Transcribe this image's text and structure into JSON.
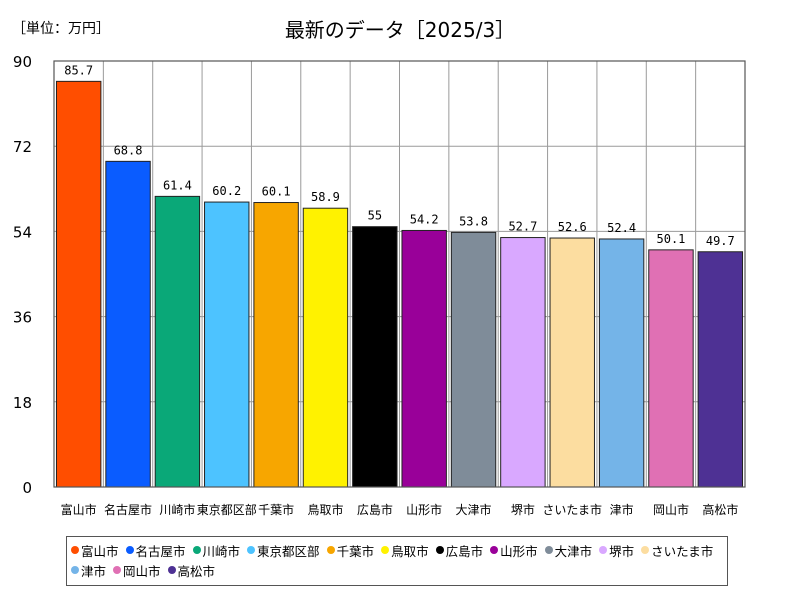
{
  "chart_data": {
    "type": "bar",
    "title": "最新のデータ［2025/3］",
    "unit_label": "［単位：万円］",
    "categories": [
      "富山市",
      "名古屋市",
      "川崎市",
      "東京都区部",
      "千葉市",
      "鳥取市",
      "広島市",
      "山形市",
      "大津市",
      "堺市",
      "さいたま市",
      "津市",
      "岡山市",
      "高松市"
    ],
    "values": [
      85.7,
      68.8,
      61.4,
      60.2,
      60.1,
      58.9,
      55,
      54.2,
      53.8,
      52.7,
      52.6,
      52.4,
      50.1,
      49.7
    ],
    "value_labels": [
      "85.7",
      "68.8",
      "61.4",
      "60.2",
      "60.1",
      "58.9",
      "55",
      "54.2",
      "53.8",
      "52.7",
      "52.6",
      "52.4",
      "50.1",
      "49.7"
    ],
    "colors": [
      "#ff4e00",
      "#0a5cff",
      "#0aa878",
      "#4dc3ff",
      "#f7a600",
      "#fff200",
      "#000000",
      "#990099",
      "#7f8c99",
      "#d9a8ff",
      "#fcdda0",
      "#74b4e8",
      "#e070b4",
      "#4e3194"
    ],
    "ylim": [
      0,
      90
    ],
    "yticks": [
      "90",
      "72",
      "54",
      "36",
      "18",
      "0"
    ],
    "grid": true,
    "legend_position": "bottom"
  }
}
